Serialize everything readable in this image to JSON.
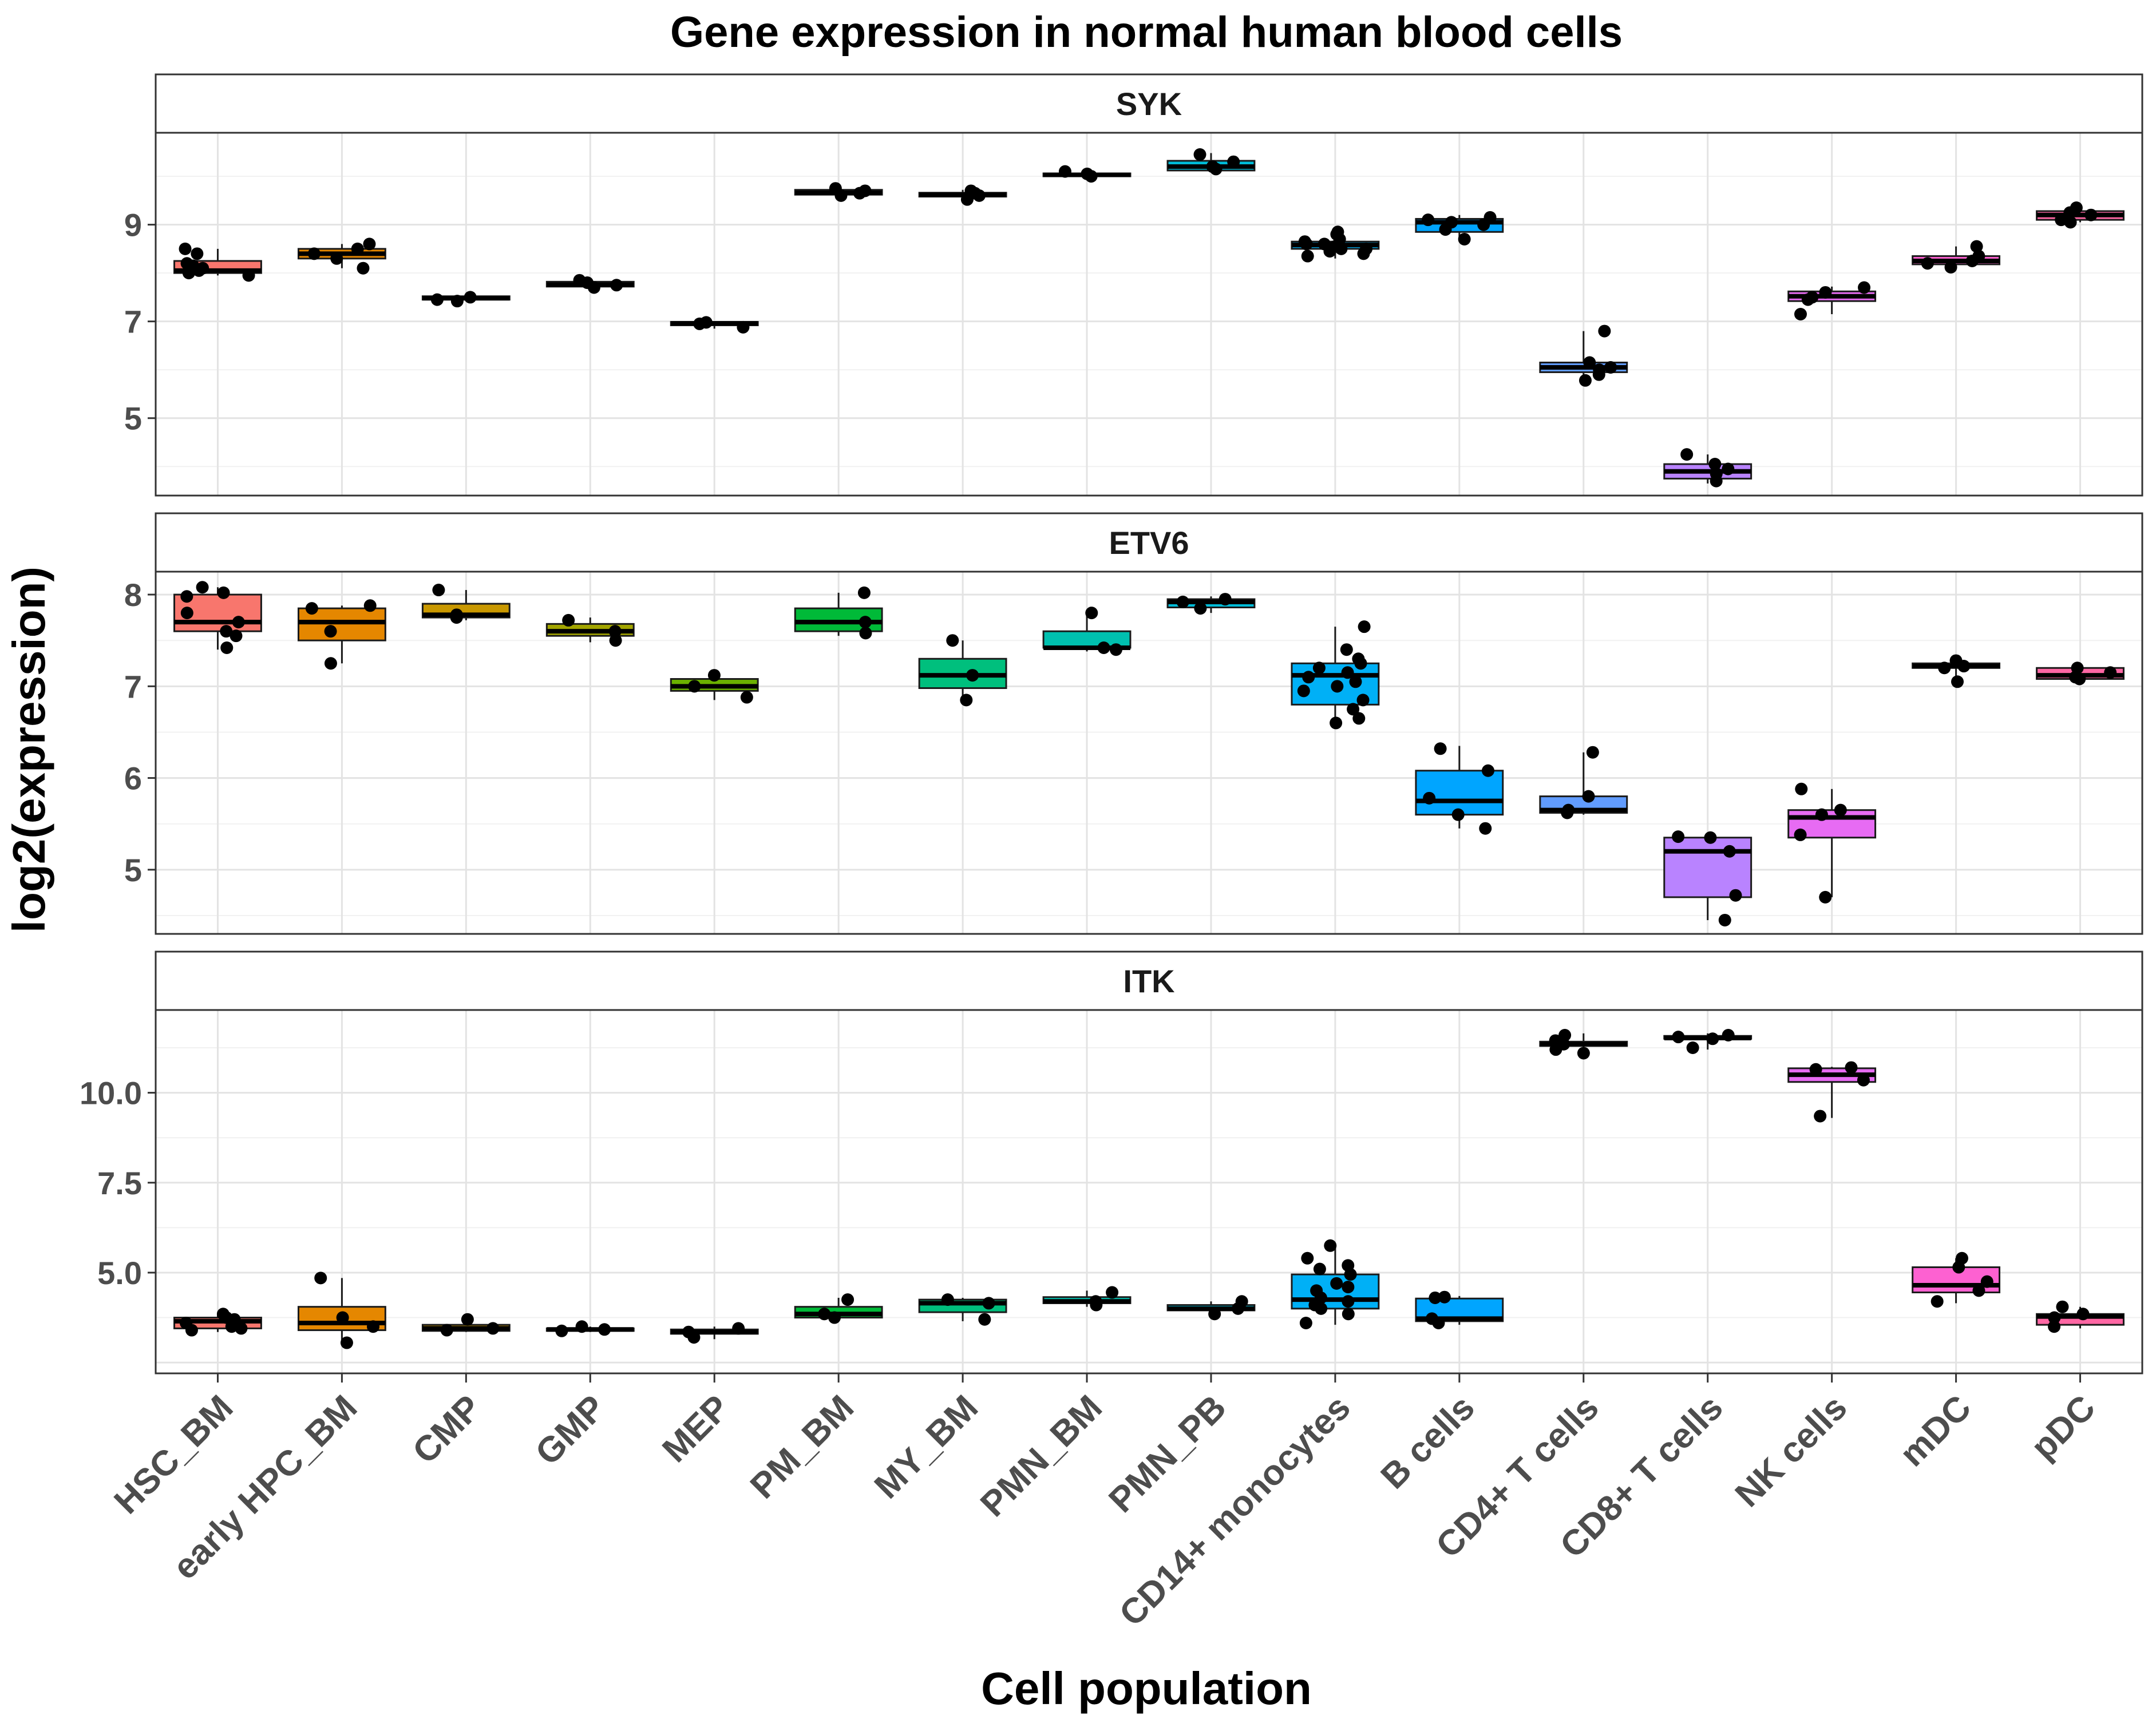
{
  "chart_data": {
    "type": "boxplot",
    "title": "Gene expression in normal human blood cells",
    "xlabel": "Cell population",
    "ylabel": "log2(expression)",
    "categories": [
      "HSC_BM",
      "early HPC_BM",
      "CMP",
      "GMP",
      "MEP",
      "PM_BM",
      "MY_BM",
      "PMN_BM",
      "PMN_PB",
      "CD14+ monocytes",
      "B cells",
      "CD4+ T cells",
      "CD8+ T cells",
      "NK cells",
      "mDC",
      "pDC"
    ],
    "colors": [
      "#F8766D",
      "#E58700",
      "#C99800",
      "#A3A500",
      "#6BB100",
      "#00BA38",
      "#00BF7D",
      "#00C0AF",
      "#00BCD8",
      "#00B0F6",
      "#00A5FF",
      "#619CFF",
      "#B983FF",
      "#E76BF3",
      "#FD61D1",
      "#FF67A4"
    ],
    "panels": [
      {
        "gene": "SYK",
        "ylim": [
          3.4,
          10.9
        ],
        "yticks": [
          5,
          7,
          9
        ],
        "ytick_labels": [
          "5",
          "7",
          "9"
        ],
        "boxes": [
          {
            "q1": 8.0,
            "median": 8.05,
            "q3": 8.25,
            "lo": 7.95,
            "hi": 8.5,
            "points": [
              8.5,
              8.4,
              8.2,
              8.1,
              8.05,
              8.0,
              7.95,
              8.15
            ]
          },
          {
            "q1": 8.3,
            "median": 8.4,
            "q3": 8.5,
            "lo": 8.1,
            "hi": 8.6,
            "points": [
              8.6,
              8.5,
              8.4,
              8.3,
              8.1
            ]
          },
          {
            "q1": 7.45,
            "median": 7.48,
            "q3": 7.52,
            "lo": 7.42,
            "hi": 7.55,
            "points": [
              7.45,
              7.5,
              7.42
            ]
          },
          {
            "q1": 7.72,
            "median": 7.76,
            "q3": 7.82,
            "lo": 7.68,
            "hi": 7.85,
            "points": [
              7.7,
              7.8,
              7.85,
              7.75
            ]
          },
          {
            "q1": 6.92,
            "median": 6.96,
            "q3": 6.99,
            "lo": 6.85,
            "hi": 7.0,
            "points": [
              6.98,
              6.95,
              6.88
            ]
          },
          {
            "q1": 9.62,
            "median": 9.66,
            "q3": 9.72,
            "lo": 9.58,
            "hi": 9.78,
            "points": [
              9.75,
              9.65,
              9.6,
              9.7
            ]
          },
          {
            "q1": 9.58,
            "median": 9.62,
            "q3": 9.66,
            "lo": 9.5,
            "hi": 9.72,
            "points": [
              9.7,
              9.6,
              9.52,
              9.65
            ]
          },
          {
            "q1": 10.0,
            "median": 10.03,
            "q3": 10.06,
            "lo": 9.98,
            "hi": 10.12,
            "points": [
              10.1,
              10.05,
              10.0
            ]
          },
          {
            "q1": 10.12,
            "median": 10.2,
            "q3": 10.32,
            "lo": 10.08,
            "hi": 10.48,
            "points": [
              10.45,
              10.2,
              10.15,
              10.3
            ]
          },
          {
            "q1": 8.5,
            "median": 8.58,
            "q3": 8.65,
            "lo": 8.3,
            "hi": 8.85,
            "points": [
              8.85,
              8.8,
              8.7,
              8.6,
              8.55,
              8.5,
              8.45,
              8.4,
              8.35,
              8.6,
              8.65,
              8.5
            ]
          },
          {
            "q1": 8.85,
            "median": 9.05,
            "q3": 9.12,
            "lo": 8.65,
            "hi": 9.2,
            "points": [
              9.15,
              9.1,
              9.05,
              8.9,
              8.7,
              9.0
            ]
          },
          {
            "q1": 5.95,
            "median": 6.05,
            "q3": 6.15,
            "lo": 5.75,
            "hi": 6.8,
            "points": [
              6.8,
              6.15,
              6.05,
              6.0,
              5.9,
              5.78
            ]
          },
          {
            "q1": 3.75,
            "median": 3.9,
            "q3": 4.05,
            "lo": 3.65,
            "hi": 4.25,
            "points": [
              4.25,
              4.05,
              3.95,
              3.85,
              3.7
            ]
          },
          {
            "q1": 7.42,
            "median": 7.52,
            "q3": 7.62,
            "lo": 7.15,
            "hi": 7.72,
            "points": [
              7.7,
              7.6,
              7.5,
              7.45,
              7.15
            ]
          },
          {
            "q1": 8.18,
            "median": 8.25,
            "q3": 8.35,
            "lo": 8.1,
            "hi": 8.55,
            "points": [
              8.55,
              8.35,
              8.25,
              8.2,
              8.12
            ]
          },
          {
            "q1": 9.1,
            "median": 9.2,
            "q3": 9.28,
            "lo": 9.05,
            "hi": 9.35,
            "points": [
              9.35,
              9.25,
              9.2,
              9.1,
              9.05
            ]
          }
        ]
      },
      {
        "gene": "ETV6",
        "ylim": [
          4.3,
          8.25
        ],
        "yticks": [
          5,
          6,
          7,
          8
        ],
        "ytick_labels": [
          "5",
          "6",
          "7",
          "8"
        ],
        "boxes": [
          {
            "q1": 7.6,
            "median": 7.7,
            "q3": 8.0,
            "lo": 7.4,
            "hi": 8.08,
            "points": [
              8.08,
              8.02,
              7.98,
              7.8,
              7.7,
              7.6,
              7.55,
              7.42
            ]
          },
          {
            "q1": 7.5,
            "median": 7.7,
            "q3": 7.85,
            "lo": 7.25,
            "hi": 7.88,
            "points": [
              7.88,
              7.85,
              7.6,
              7.25
            ]
          },
          {
            "q1": 7.75,
            "median": 7.78,
            "q3": 7.9,
            "lo": 7.72,
            "hi": 8.05,
            "points": [
              8.05,
              7.78,
              7.75
            ]
          },
          {
            "q1": 7.55,
            "median": 7.6,
            "q3": 7.68,
            "lo": 7.48,
            "hi": 7.75,
            "points": [
              7.72,
              7.6,
              7.5
            ]
          },
          {
            "q1": 6.95,
            "median": 7.0,
            "q3": 7.08,
            "lo": 6.85,
            "hi": 7.12,
            "points": [
              7.12,
              7.0,
              6.88
            ]
          },
          {
            "q1": 7.6,
            "median": 7.7,
            "q3": 7.85,
            "lo": 7.55,
            "hi": 8.02,
            "points": [
              8.02,
              7.7,
              7.58
            ]
          },
          {
            "q1": 6.98,
            "median": 7.12,
            "q3": 7.3,
            "lo": 6.82,
            "hi": 7.5,
            "points": [
              7.5,
              7.12,
              6.85
            ]
          },
          {
            "q1": 7.42,
            "median": 7.42,
            "q3": 7.6,
            "lo": 7.38,
            "hi": 7.8,
            "points": [
              7.8,
              7.42,
              7.4
            ]
          },
          {
            "q1": 7.86,
            "median": 7.92,
            "q3": 7.95,
            "lo": 7.8,
            "hi": 7.98,
            "points": [
              7.95,
              7.92,
              7.85
            ]
          },
          {
            "q1": 6.8,
            "median": 7.12,
            "q3": 7.25,
            "lo": 6.6,
            "hi": 7.65,
            "points": [
              7.65,
              7.4,
              7.25,
              7.2,
              7.15,
              7.1,
              7.05,
              6.95,
              6.85,
              6.75,
              6.65,
              6.6,
              7.0,
              7.3
            ]
          },
          {
            "q1": 5.6,
            "median": 5.75,
            "q3": 6.08,
            "lo": 5.45,
            "hi": 6.35,
            "points": [
              6.32,
              6.08,
              5.78,
              5.6,
              5.45
            ]
          },
          {
            "q1": 5.62,
            "median": 5.65,
            "q3": 5.8,
            "lo": 5.6,
            "hi": 6.28,
            "points": [
              6.28,
              5.8,
              5.65,
              5.62
            ]
          },
          {
            "q1": 4.7,
            "median": 5.2,
            "q3": 5.35,
            "lo": 4.45,
            "hi": 5.38,
            "points": [
              5.36,
              5.35,
              5.2,
              4.72,
              4.45
            ]
          },
          {
            "q1": 5.35,
            "median": 5.57,
            "q3": 5.65,
            "lo": 4.7,
            "hi": 5.88,
            "points": [
              5.88,
              5.65,
              5.6,
              5.38,
              4.7
            ]
          },
          {
            "q1": 7.2,
            "median": 7.22,
            "q3": 7.25,
            "lo": 7.02,
            "hi": 7.3,
            "points": [
              7.28,
              7.22,
              7.2,
              7.05
            ]
          },
          {
            "q1": 7.08,
            "median": 7.12,
            "q3": 7.2,
            "lo": 7.05,
            "hi": 7.22,
            "points": [
              7.2,
              7.15,
              7.1,
              7.08
            ]
          }
        ]
      },
      {
        "gene": "ITK",
        "ylim": [
          2.2,
          12.3
        ],
        "yticks": [
          5.0,
          7.5,
          10.0
        ],
        "ytick_labels": [
          "5.0",
          "7.5",
          "10.0"
        ],
        "boxes": [
          {
            "q1": 3.45,
            "median": 3.65,
            "q3": 3.75,
            "lo": 3.35,
            "hi": 3.85,
            "points": [
              3.85,
              3.75,
              3.7,
              3.6,
              3.5,
              3.45,
              3.4,
              3.55
            ]
          },
          {
            "q1": 3.4,
            "median": 3.6,
            "q3": 4.05,
            "lo": 3.0,
            "hi": 4.85,
            "points": [
              4.85,
              3.75,
              3.5,
              3.05
            ]
          },
          {
            "q1": 3.38,
            "median": 3.45,
            "q3": 3.55,
            "lo": 3.35,
            "hi": 3.72,
            "points": [
              3.7,
              3.45,
              3.4
            ]
          },
          {
            "q1": 3.38,
            "median": 3.42,
            "q3": 3.45,
            "lo": 3.35,
            "hi": 3.5,
            "points": [
              3.5,
              3.42,
              3.38
            ]
          },
          {
            "q1": 3.3,
            "median": 3.35,
            "q3": 3.42,
            "lo": 3.15,
            "hi": 3.5,
            "points": [
              3.45,
              3.35,
              3.2
            ]
          },
          {
            "q1": 3.75,
            "median": 3.85,
            "q3": 4.05,
            "lo": 3.7,
            "hi": 4.3,
            "points": [
              4.25,
              3.85,
              3.75
            ]
          },
          {
            "q1": 3.9,
            "median": 4.15,
            "q3": 4.25,
            "lo": 3.65,
            "hi": 4.3,
            "points": [
              4.25,
              4.15,
              3.7
            ]
          },
          {
            "q1": 4.15,
            "median": 4.2,
            "q3": 4.32,
            "lo": 4.05,
            "hi": 4.5,
            "points": [
              4.45,
              4.2,
              4.1
            ]
          },
          {
            "q1": 3.95,
            "median": 4.0,
            "q3": 4.1,
            "lo": 3.8,
            "hi": 4.2,
            "points": [
              4.2,
              4.0,
              3.85
            ]
          },
          {
            "q1": 4.0,
            "median": 4.25,
            "q3": 4.95,
            "lo": 3.55,
            "hi": 5.8,
            "points": [
              5.75,
              5.4,
              5.1,
              4.95,
              4.6,
              4.5,
              4.3,
              4.2,
              4.0,
              3.85,
              3.6,
              5.2,
              4.7,
              4.1
            ]
          },
          {
            "q1": 3.65,
            "median": 3.72,
            "q3": 4.28,
            "lo": 3.55,
            "hi": 4.35,
            "points": [
              4.32,
              4.3,
              3.72,
              3.6
            ]
          },
          {
            "q1": 11.3,
            "median": 11.35,
            "q3": 11.42,
            "lo": 11.1,
            "hi": 11.65,
            "points": [
              11.6,
              11.45,
              11.35,
              11.2,
              11.1
            ]
          },
          {
            "q1": 11.5,
            "median": 11.52,
            "q3": 11.58,
            "lo": 11.2,
            "hi": 11.65,
            "points": [
              11.6,
              11.55,
              11.5,
              11.25
            ]
          },
          {
            "q1": 10.3,
            "median": 10.5,
            "q3": 10.68,
            "lo": 9.3,
            "hi": 10.72,
            "points": [
              10.7,
              10.65,
              10.35,
              9.35
            ]
          },
          {
            "q1": 4.45,
            "median": 4.65,
            "q3": 5.15,
            "lo": 4.15,
            "hi": 5.4,
            "points": [
              5.4,
              5.15,
              4.75,
              4.5,
              4.2
            ]
          },
          {
            "q1": 3.55,
            "median": 3.78,
            "q3": 3.85,
            "lo": 3.45,
            "hi": 4.05,
            "points": [
              4.05,
              3.85,
              3.75,
              3.5
            ]
          }
        ]
      }
    ]
  }
}
